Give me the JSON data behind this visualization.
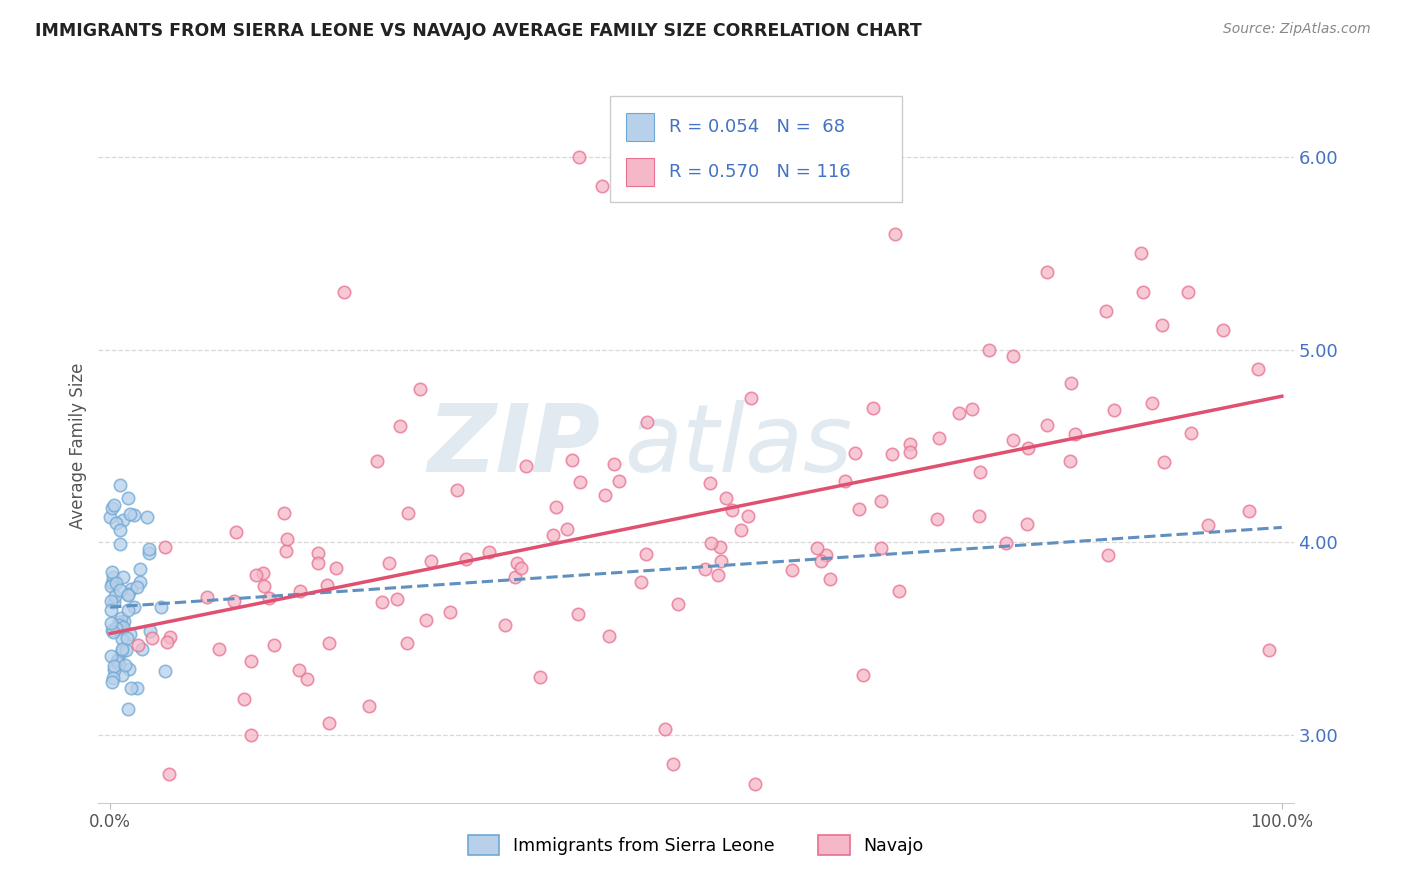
{
  "title": "IMMIGRANTS FROM SIERRA LEONE VS NAVAJO AVERAGE FAMILY SIZE CORRELATION CHART",
  "source": "Source: ZipAtlas.com",
  "ylabel": "Average Family Size",
  "xlim": [
    -1,
    101
  ],
  "ylim": [
    2.65,
    6.35
  ],
  "yticks": [
    3.0,
    4.0,
    5.0,
    6.0
  ],
  "xtick_vals": [
    0,
    100
  ],
  "xtick_labels": [
    "0.0%",
    "100.0%"
  ],
  "color_blue_fill": "#b8d0ea",
  "color_blue_edge": "#6fa8d4",
  "color_pink_fill": "#f5b8c8",
  "color_pink_edge": "#e87090",
  "color_blue_text": "#4472c4",
  "color_pink_line": "#e05070",
  "color_blue_line": "#6090c0",
  "color_grid": "#d8d8d8",
  "r_sl": "0.054",
  "n_sl": "68",
  "r_nav": "0.570",
  "n_nav": "116",
  "watermark_zip": "ZIP",
  "watermark_atlas": "atlas",
  "seed": 12
}
